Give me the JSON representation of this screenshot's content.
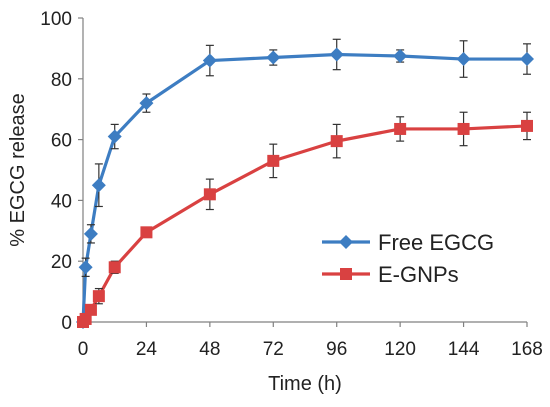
{
  "chart_data": {
    "type": "line",
    "xlabel": "Time (h)",
    "ylabel": "% EGCG release",
    "xlim": [
      0,
      168
    ],
    "ylim": [
      0,
      100
    ],
    "x_ticks": [
      0,
      24,
      48,
      72,
      96,
      120,
      144,
      168
    ],
    "y_ticks": [
      0,
      20,
      40,
      60,
      80,
      100
    ],
    "grid": false,
    "legend_position": "lower-right",
    "series": [
      {
        "name": "Free EGCG",
        "color": "#3d7dc2",
        "marker": "diamond",
        "x": [
          0,
          1,
          3,
          6,
          12,
          24,
          48,
          72,
          96,
          120,
          144,
          168
        ],
        "y": [
          0,
          18,
          29,
          45,
          61,
          72,
          86,
          87,
          88,
          87.5,
          86.5,
          86.5
        ],
        "error": [
          0,
          3,
          3,
          7,
          4,
          3,
          5,
          2.5,
          5,
          2,
          6,
          5
        ]
      },
      {
        "name": "E-GNPs",
        "color": "#d94141",
        "marker": "square",
        "x": [
          0,
          1,
          3,
          6,
          12,
          24,
          48,
          72,
          96,
          120,
          144,
          168
        ],
        "y": [
          0,
          1,
          4,
          8.5,
          18,
          29.5,
          42,
          53,
          59.5,
          63.5,
          63.5,
          64.5
        ],
        "error": [
          0,
          0.8,
          1.5,
          2.5,
          2,
          1,
          5,
          5.5,
          5.5,
          4,
          5.5,
          4.5
        ]
      }
    ]
  }
}
